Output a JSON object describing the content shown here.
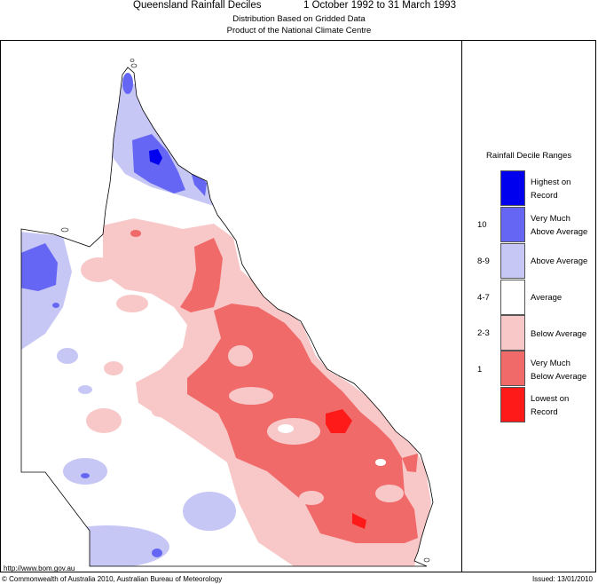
{
  "header": {
    "title": "Queensland Rainfall Deciles",
    "period": "1 October 1992 to 31 March 1993",
    "subtitle_1": "Distribution Based on Gridded Data",
    "subtitle_2": "Product of the National Climate Centre"
  },
  "legend": {
    "title": "Rainfall Decile Ranges",
    "items": [
      {
        "label_1": "Highest on",
        "label_2": "Record",
        "range": "",
        "color": "#0000ee"
      },
      {
        "label_1": "Very Much",
        "label_2": "Above Average",
        "range": "10",
        "color": "#6666f5"
      },
      {
        "label_1": "Above Average",
        "label_2": "",
        "range": "8-9",
        "color": "#c7c7f5"
      },
      {
        "label_1": "Average",
        "label_2": "",
        "range": "4-7",
        "color": "#ffffff"
      },
      {
        "label_1": "Below Average",
        "label_2": "",
        "range": "2-3",
        "color": "#f8c8c8"
      },
      {
        "label_1": "Very Much",
        "label_2": "Below Average",
        "range": "1",
        "color": "#f06a6a"
      },
      {
        "label_1": "Lowest on",
        "label_2": "Record",
        "range": "",
        "color": "#ff1a1a"
      }
    ]
  },
  "footer": {
    "url": "http://www.bom.gov.au",
    "copyright": "© Commonwealth of Australia 2010, Australian Bureau of Meteorology",
    "issued": "Issued: 13/01/2010"
  }
}
